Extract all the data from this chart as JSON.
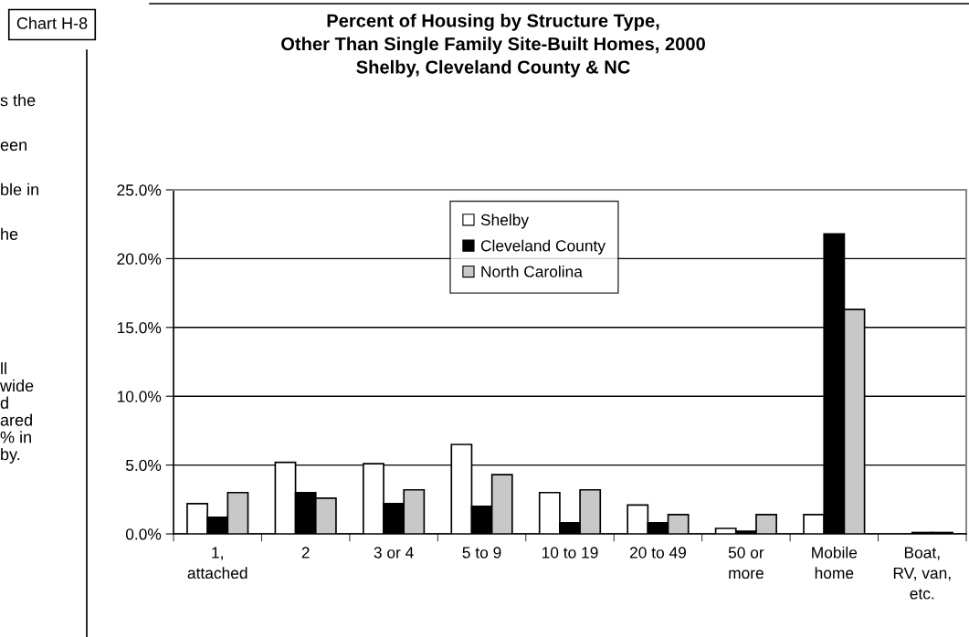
{
  "chart_data": {
    "type": "bar",
    "title": "Percent of Housing by Structure Type,\nOther Than Single Family Site-Built Homes, 2000\nShelby, Cleveland County & NC",
    "categories": [
      "1,\nattached",
      "2",
      "3 or 4",
      "5 to 9",
      "10 to 19",
      "20 to 49",
      "50 or\nmore",
      "Mobile\nhome",
      "Boat,\nRV, van,\netc."
    ],
    "series": [
      {
        "name": "Shelby",
        "color": "#ffffff",
        "values": [
          2.2,
          5.2,
          5.1,
          6.5,
          3.0,
          2.1,
          0.4,
          1.4,
          0.0
        ]
      },
      {
        "name": "Cleveland County",
        "color": "#000000",
        "values": [
          1.2,
          3.0,
          2.2,
          2.0,
          0.8,
          0.8,
          0.2,
          21.8,
          0.1
        ]
      },
      {
        "name": "North Carolina",
        "color": "#c8c8c8",
        "values": [
          3.0,
          2.6,
          3.2,
          4.3,
          3.2,
          1.4,
          1.4,
          16.3,
          0.1
        ]
      }
    ],
    "ylim": [
      0,
      25
    ],
    "yticks": [
      {
        "value": 0,
        "label": "0.0%"
      },
      {
        "value": 5,
        "label": "5.0%"
      },
      {
        "value": 10,
        "label": "10.0%"
      },
      {
        "value": 15,
        "label": "15.0%"
      },
      {
        "value": 20,
        "label": "20.0%"
      },
      {
        "value": 25,
        "label": "25.0%"
      }
    ],
    "grid": "y",
    "legend": "top center",
    "annotations": [
      "Chart H-8",
      "s the\neen\nble in\nhe",
      "ll\nwide\nd\nared\n% in\nby."
    ]
  }
}
